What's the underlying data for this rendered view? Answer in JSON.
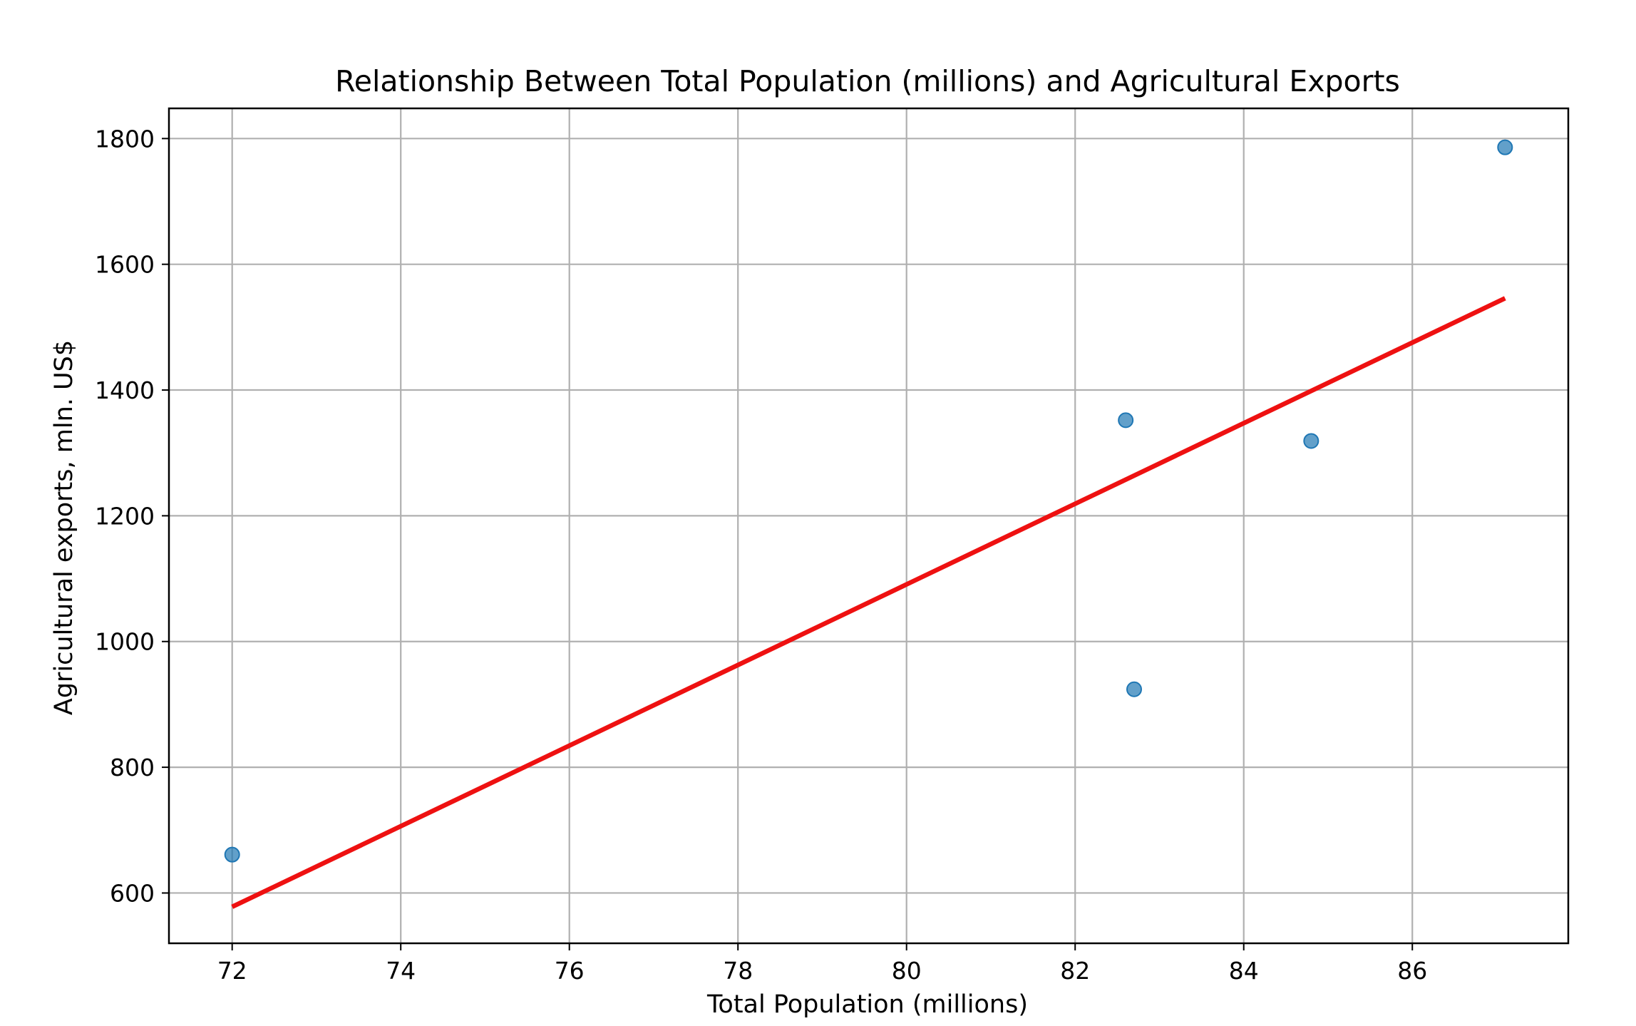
{
  "chart_data": {
    "type": "scatter",
    "title": "Relationship Between Total Population (millions) and Agricultural Exports",
    "xlabel": "Total Population (millions)",
    "ylabel": "Agricultural exports, mln. US$",
    "xlim": [
      71.25,
      87.85
    ],
    "ylim": [
      520,
      1848
    ],
    "xticks": [
      72,
      74,
      76,
      78,
      80,
      82,
      84,
      86
    ],
    "yticks": [
      600,
      800,
      1000,
      1200,
      1400,
      1600,
      1800
    ],
    "grid": true,
    "series": [
      {
        "type": "scatter",
        "color": "#1f77b4",
        "points": [
          {
            "x": 72.0,
            "y": 661
          },
          {
            "x": 82.6,
            "y": 1352
          },
          {
            "x": 82.7,
            "y": 924
          },
          {
            "x": 84.8,
            "y": 1319
          },
          {
            "x": 87.1,
            "y": 1786
          }
        ]
      },
      {
        "type": "line",
        "color": "#ee1111",
        "points": [
          {
            "x": 72.0,
            "y": 578
          },
          {
            "x": 87.1,
            "y": 1546
          }
        ]
      }
    ]
  }
}
